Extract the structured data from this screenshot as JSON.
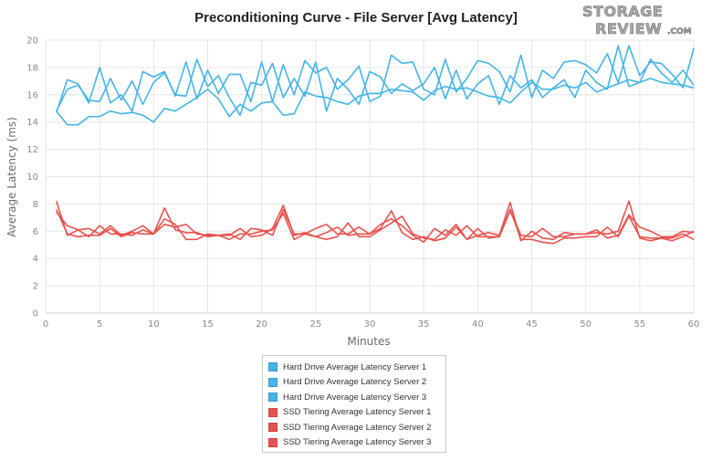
{
  "logo": {
    "line1": "STORAGE",
    "line2": "REVIEW",
    "suffix": ".COM"
  },
  "colors": {
    "hdd": "#45b4e7",
    "ssd": "#e8534f"
  },
  "chart_data": {
    "type": "line",
    "title": "Preconditioning Curve - File Server [Avg Latency]",
    "xlabel": "Minutes",
    "ylabel": "Average Latency (ms)",
    "xlim": [
      0,
      60
    ],
    "ylim": [
      0,
      20
    ],
    "x_ticks": [
      0,
      5,
      10,
      15,
      20,
      25,
      30,
      35,
      40,
      45,
      50,
      55,
      60
    ],
    "y_ticks": [
      0,
      2,
      4,
      6,
      8,
      10,
      12,
      14,
      16,
      18,
      20
    ],
    "grid": true,
    "legend_position": "bottom-center",
    "x": [
      1,
      2,
      3,
      4,
      5,
      6,
      7,
      8,
      9,
      10,
      11,
      12,
      13,
      14,
      15,
      16,
      17,
      18,
      19,
      20,
      21,
      22,
      23,
      24,
      25,
      26,
      27,
      28,
      29,
      30,
      31,
      32,
      33,
      34,
      35,
      36,
      37,
      38,
      39,
      40,
      41,
      42,
      43,
      44,
      45,
      46,
      47,
      48,
      49,
      50,
      51,
      52,
      53,
      54,
      55,
      56,
      57,
      58,
      59,
      60
    ],
    "series": [
      {
        "name": "Hard Drive Average Latency Server 1",
        "color": "#45b4e7",
        "values": [
          14.7,
          17.1,
          16.8,
          15.4,
          18.0,
          15.4,
          16.0,
          14.8,
          17.7,
          17.3,
          17.7,
          15.9,
          18.4,
          15.7,
          17.8,
          16.1,
          17.5,
          17.5,
          15.5,
          18.4,
          15.5,
          18.2,
          16.0,
          18.5,
          17.6,
          18.0,
          16.4,
          17.1,
          18.1,
          15.5,
          15.9,
          18.9,
          18.3,
          18.4,
          16.4,
          16.0,
          18.6,
          16.2,
          17.2,
          18.5,
          18.3,
          17.7,
          16.2,
          18.9,
          15.8,
          17.8,
          17.2,
          18.4,
          18.5,
          18.2,
          17.6,
          19.0,
          16.9,
          19.6,
          17.4,
          18.4,
          18.3,
          17.5,
          16.5,
          19.4
        ]
      },
      {
        "name": "Hard Drive Average Latency Server 2",
        "color": "#45b4e7",
        "values": [
          14.8,
          16.4,
          16.7,
          15.6,
          15.5,
          17.2,
          15.6,
          17.0,
          15.3,
          16.9,
          17.6,
          16.0,
          15.9,
          18.6,
          16.6,
          17.4,
          15.8,
          14.5,
          16.9,
          16.7,
          18.3,
          15.8,
          17.2,
          15.9,
          18.4,
          14.8,
          17.2,
          16.4,
          15.3,
          17.7,
          17.3,
          16.1,
          16.8,
          16.3,
          16.8,
          18.0,
          15.7,
          17.8,
          15.7,
          16.8,
          17.4,
          15.3,
          17.4,
          16.5,
          17.1,
          15.8,
          16.5,
          17.1,
          15.8,
          17.8,
          16.9,
          16.4,
          19.6,
          16.6,
          16.9,
          18.6,
          17.6,
          16.9,
          17.8,
          16.7
        ]
      },
      {
        "name": "Hard Drive Average Latency Server 3",
        "color": "#45b4e7",
        "values": [
          14.8,
          13.8,
          13.8,
          14.4,
          14.4,
          14.8,
          14.6,
          14.7,
          14.5,
          14.0,
          15.0,
          14.8,
          15.3,
          15.8,
          16.4,
          15.7,
          14.4,
          15.3,
          14.8,
          15.4,
          15.5,
          14.5,
          14.6,
          16.2,
          15.9,
          15.8,
          15.5,
          15.3,
          15.9,
          16.1,
          16.1,
          16.4,
          16.3,
          16.2,
          15.6,
          16.3,
          16.6,
          16.4,
          16.5,
          16.2,
          15.9,
          15.8,
          15.4,
          16.2,
          16.9,
          16.4,
          16.4,
          16.7,
          16.5,
          16.9,
          16.2,
          16.5,
          16.8,
          17.1,
          16.9,
          17.2,
          16.9,
          16.8,
          16.7,
          16.5
        ]
      },
      {
        "name": "SSD Tiering Average Latency Server 1",
        "color": "#e8534f",
        "values": [
          8.2,
          5.7,
          6.1,
          5.6,
          6.4,
          5.8,
          5.8,
          5.7,
          6.1,
          5.8,
          7.7,
          6.1,
          5.9,
          5.9,
          5.6,
          5.7,
          5.7,
          6.2,
          5.6,
          5.7,
          6.2,
          7.9,
          5.7,
          5.9,
          5.6,
          5.9,
          6.3,
          5.7,
          5.8,
          5.8,
          6.2,
          7.5,
          5.9,
          5.4,
          5.6,
          5.3,
          5.5,
          6.3,
          5.4,
          5.7,
          5.9,
          5.7,
          8.1,
          5.3,
          6.0,
          5.5,
          5.4,
          5.9,
          5.8,
          5.8,
          5.9,
          5.8,
          6.0,
          8.2,
          5.5,
          5.3,
          5.5,
          5.5,
          5.8,
          5.4
        ]
      },
      {
        "name": "SSD Tiering Average Latency Server 2",
        "color": "#e8534f",
        "values": [
          7.4,
          6.4,
          6.1,
          6.2,
          5.8,
          6.4,
          5.7,
          6.0,
          6.4,
          5.8,
          6.5,
          6.3,
          6.5,
          5.8,
          5.7,
          5.7,
          5.8,
          5.4,
          6.2,
          6.1,
          5.7,
          7.6,
          5.8,
          5.8,
          6.2,
          6.5,
          5.8,
          5.8,
          6.3,
          5.8,
          6.5,
          6.9,
          6.4,
          5.7,
          5.2,
          6.2,
          5.7,
          6.5,
          5.4,
          6.2,
          5.5,
          5.6,
          7.5,
          5.7,
          5.6,
          6.2,
          5.6,
          5.6,
          5.8,
          5.8,
          6.1,
          5.5,
          5.7,
          7.2,
          6.3,
          6.0,
          5.6,
          5.6,
          6.0,
          5.9
        ]
      },
      {
        "name": "SSD Tiering Average Latency Server 3",
        "color": "#e8534f",
        "values": [
          7.6,
          5.8,
          5.6,
          5.7,
          5.7,
          6.2,
          5.6,
          5.9,
          5.8,
          5.8,
          6.9,
          6.5,
          5.4,
          5.4,
          5.8,
          5.7,
          5.4,
          5.8,
          5.8,
          6.0,
          6.1,
          7.3,
          5.4,
          5.8,
          5.6,
          5.4,
          5.6,
          6.6,
          5.6,
          5.6,
          6.1,
          6.6,
          7.1,
          5.8,
          5.5,
          5.4,
          6.1,
          5.7,
          6.4,
          5.6,
          5.6,
          5.6,
          7.6,
          5.4,
          5.4,
          5.2,
          5.1,
          5.5,
          5.5,
          5.6,
          5.6,
          6.3,
          5.6,
          7.1,
          5.6,
          5.5,
          5.5,
          5.3,
          5.6,
          6.0
        ]
      }
    ]
  }
}
